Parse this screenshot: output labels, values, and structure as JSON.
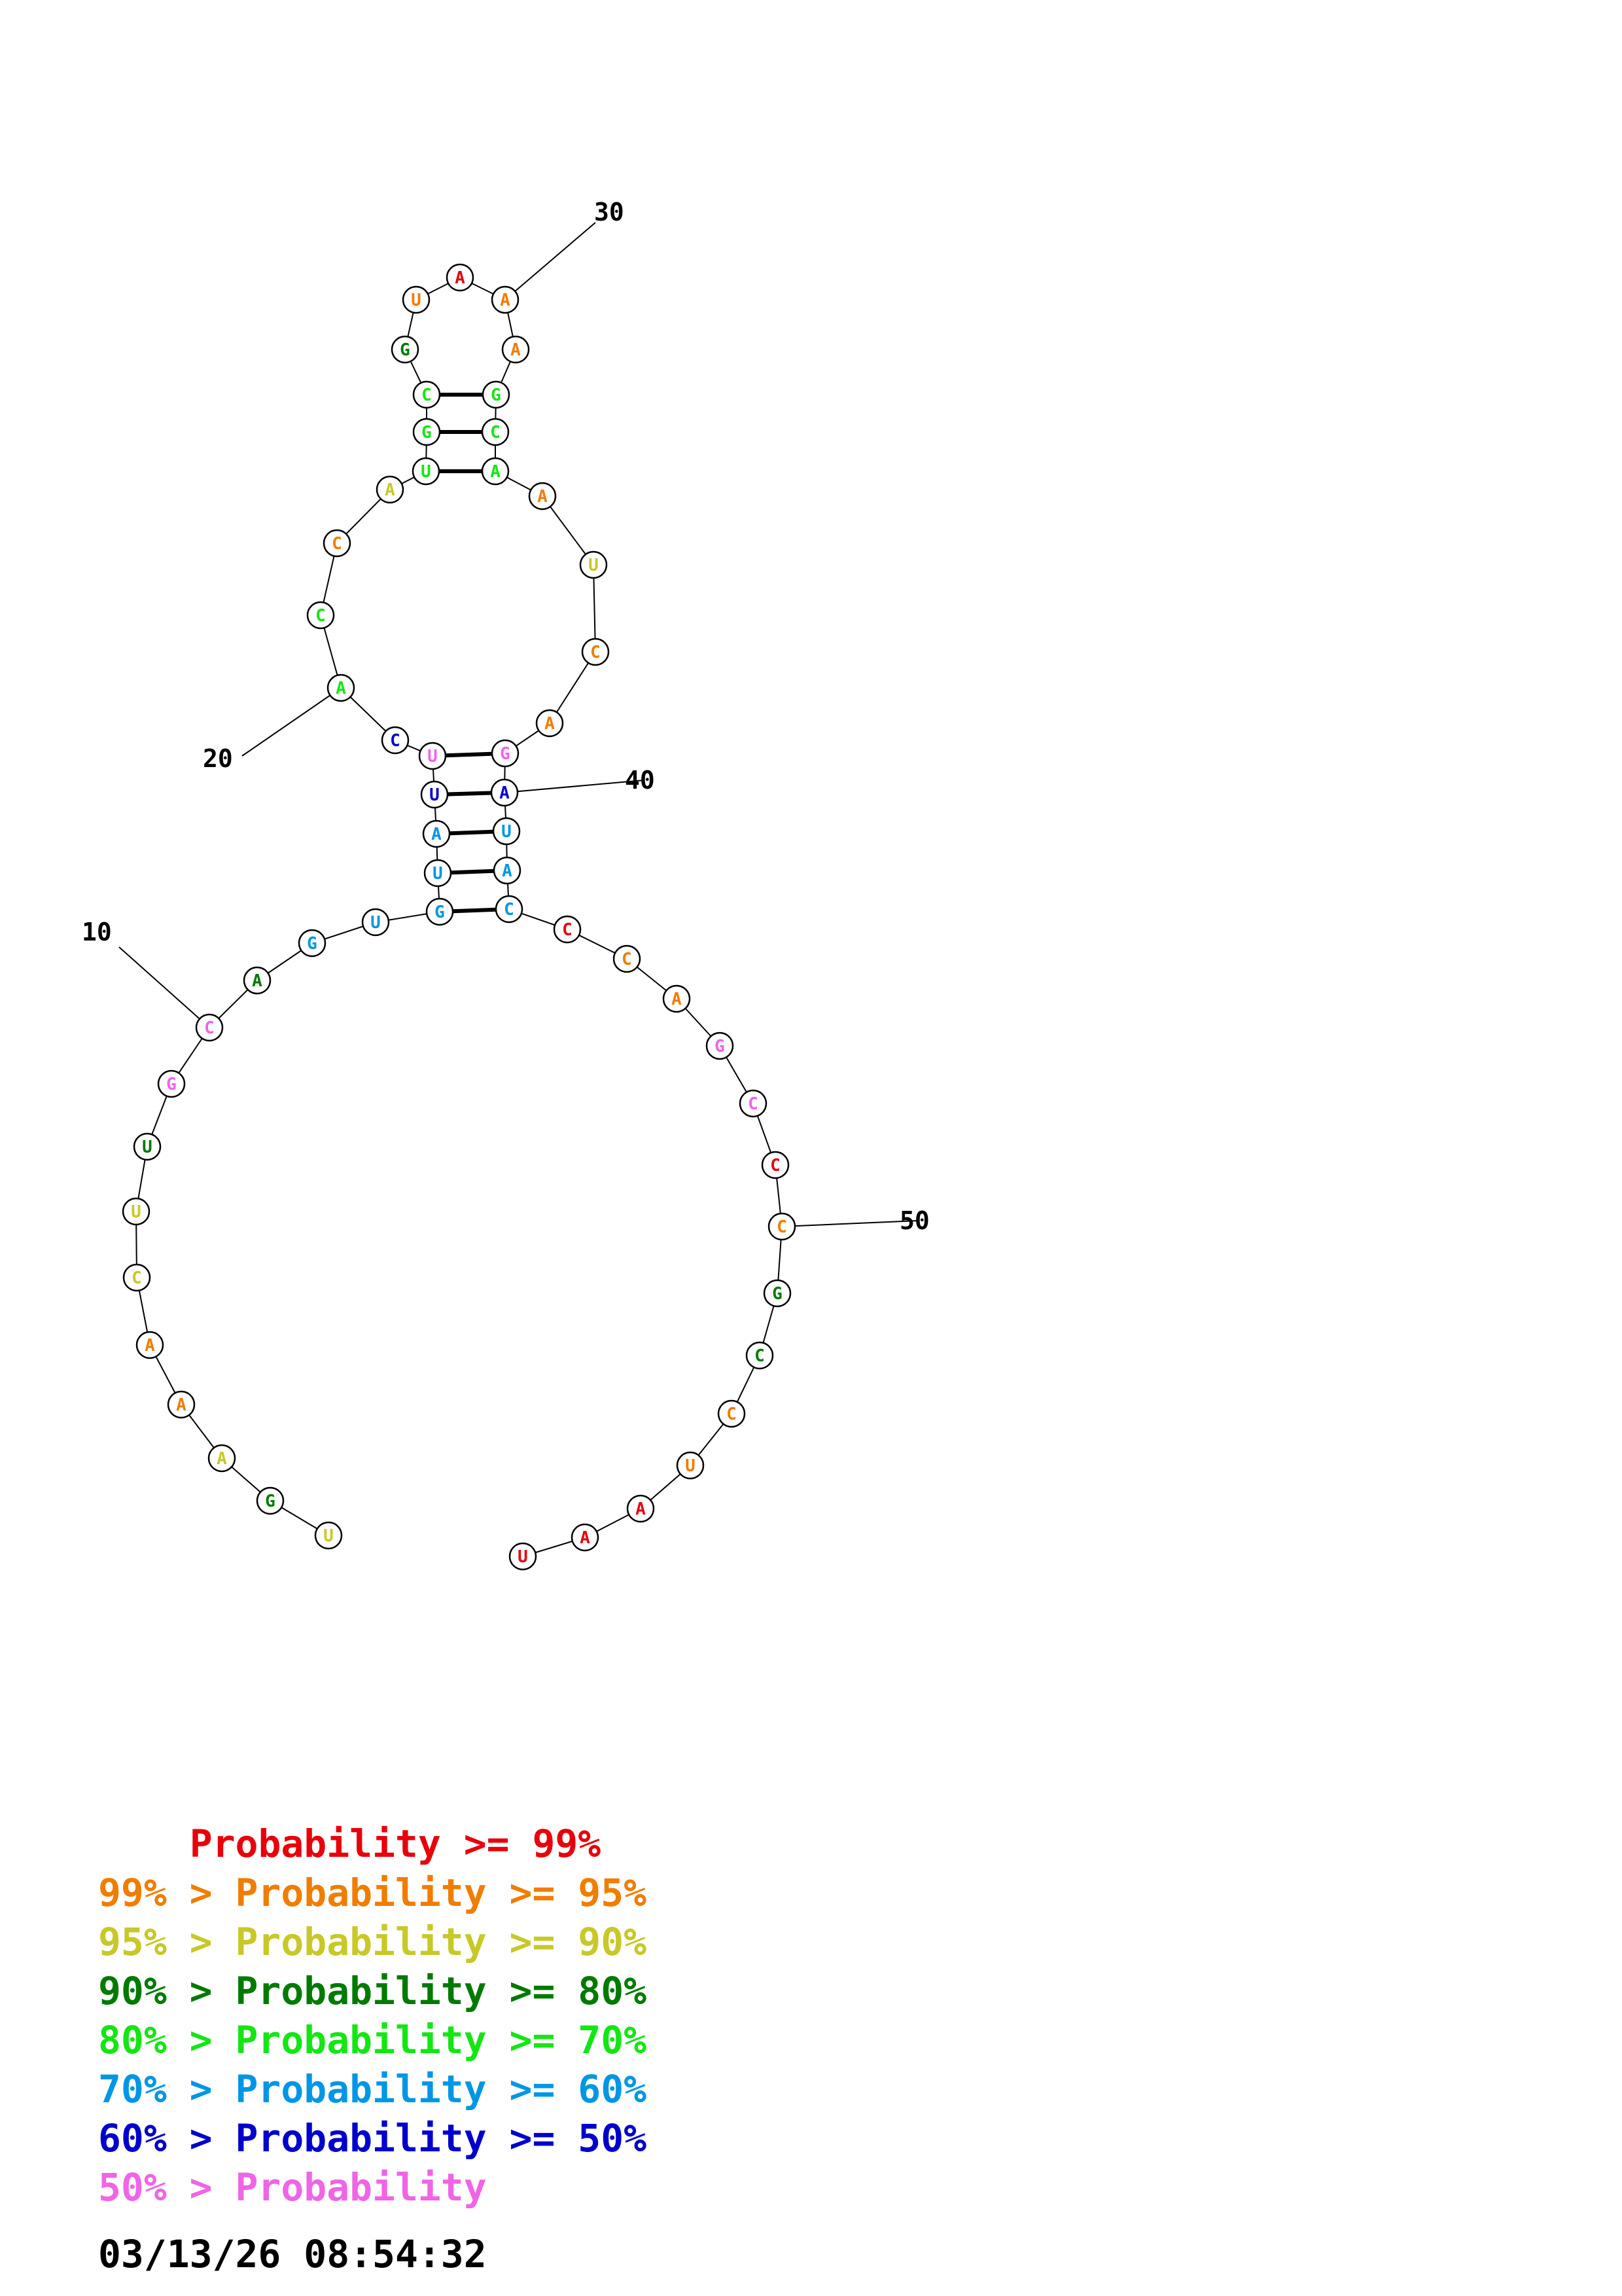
{
  "colors": {
    "p99": "#e8000b",
    "p95": "#f07d00",
    "p90": "#c8c828",
    "p80": "#007a00",
    "p70": "#14e614",
    "p60": "#0096e6",
    "p50": "#0000cc",
    "p0": "#f064e6"
  },
  "sequence": [
    {
      "n": 1,
      "b": "U",
      "c": "p90"
    },
    {
      "n": 2,
      "b": "G",
      "c": "p80"
    },
    {
      "n": 3,
      "b": "A",
      "c": "p90"
    },
    {
      "n": 4,
      "b": "A",
      "c": "p95"
    },
    {
      "n": 5,
      "b": "A",
      "c": "p95"
    },
    {
      "n": 6,
      "b": "C",
      "c": "p90"
    },
    {
      "n": 7,
      "b": "U",
      "c": "p90"
    },
    {
      "n": 8,
      "b": "U",
      "c": "p80"
    },
    {
      "n": 9,
      "b": "G",
      "c": "p0"
    },
    {
      "n": 10,
      "b": "C",
      "c": "p0"
    },
    {
      "n": 11,
      "b": "A",
      "c": "p80"
    },
    {
      "n": 12,
      "b": "G",
      "c": "p60"
    },
    {
      "n": 13,
      "b": "U",
      "c": "p60"
    },
    {
      "n": 14,
      "b": "G",
      "c": "p60"
    },
    {
      "n": 15,
      "b": "U",
      "c": "p60"
    },
    {
      "n": 16,
      "b": "A",
      "c": "p60"
    },
    {
      "n": 17,
      "b": "U",
      "c": "p50"
    },
    {
      "n": 18,
      "b": "U",
      "c": "p0"
    },
    {
      "n": 19,
      "b": "C",
      "c": "p50"
    },
    {
      "n": 20,
      "b": "A",
      "c": "p70"
    },
    {
      "n": 21,
      "b": "C",
      "c": "p70"
    },
    {
      "n": 22,
      "b": "C",
      "c": "p95"
    },
    {
      "n": 23,
      "b": "A",
      "c": "p90"
    },
    {
      "n": 24,
      "b": "U",
      "c": "p70"
    },
    {
      "n": 25,
      "b": "G",
      "c": "p70"
    },
    {
      "n": 26,
      "b": "C",
      "c": "p70"
    },
    {
      "n": 27,
      "b": "G",
      "c": "p80"
    },
    {
      "n": 28,
      "b": "U",
      "c": "p95"
    },
    {
      "n": 29,
      "b": "A",
      "c": "p99"
    },
    {
      "n": 30,
      "b": "A",
      "c": "p95"
    },
    {
      "n": 31,
      "b": "A",
      "c": "p95"
    },
    {
      "n": 32,
      "b": "G",
      "c": "p70"
    },
    {
      "n": 33,
      "b": "C",
      "c": "p70"
    },
    {
      "n": 34,
      "b": "A",
      "c": "p70"
    },
    {
      "n": 35,
      "b": "A",
      "c": "p95"
    },
    {
      "n": 36,
      "b": "U",
      "c": "p90"
    },
    {
      "n": 37,
      "b": "C",
      "c": "p95"
    },
    {
      "n": 38,
      "b": "A",
      "c": "p95"
    },
    {
      "n": 39,
      "b": "G",
      "c": "p0"
    },
    {
      "n": 40,
      "b": "A",
      "c": "p50"
    },
    {
      "n": 41,
      "b": "U",
      "c": "p60"
    },
    {
      "n": 42,
      "b": "A",
      "c": "p60"
    },
    {
      "n": 43,
      "b": "C",
      "c": "p60"
    },
    {
      "n": 44,
      "b": "C",
      "c": "p99"
    },
    {
      "n": 45,
      "b": "C",
      "c": "p95"
    },
    {
      "n": 46,
      "b": "A",
      "c": "p95"
    },
    {
      "n": 47,
      "b": "G",
      "c": "p0"
    },
    {
      "n": 48,
      "b": "C",
      "c": "p0"
    },
    {
      "n": 49,
      "b": "C",
      "c": "p99"
    },
    {
      "n": 50,
      "b": "C",
      "c": "p95"
    },
    {
      "n": 51,
      "b": "G",
      "c": "p80"
    },
    {
      "n": 52,
      "b": "C",
      "c": "p80"
    },
    {
      "n": 53,
      "b": "C",
      "c": "p95"
    },
    {
      "n": 54,
      "b": "U",
      "c": "p95"
    },
    {
      "n": 55,
      "b": "A",
      "c": "p99"
    },
    {
      "n": 56,
      "b": "A",
      "c": "p99"
    },
    {
      "n": 57,
      "b": "U",
      "c": "p99"
    }
  ],
  "pairs": [
    [
      14,
      43
    ],
    [
      15,
      42
    ],
    [
      16,
      41
    ],
    [
      17,
      40
    ],
    [
      18,
      39
    ],
    [
      24,
      34
    ],
    [
      25,
      33
    ],
    [
      26,
      32
    ]
  ],
  "position_labels": [
    {
      "n": 10,
      "label": "10"
    },
    {
      "n": 20,
      "label": "20"
    },
    {
      "n": 30,
      "label": "30"
    },
    {
      "n": 40,
      "label": "40"
    },
    {
      "n": 50,
      "label": "50"
    }
  ],
  "legend": [
    {
      "prefix": "    ",
      "text": "Probability >= 99%",
      "c": "p99"
    },
    {
      "prefix": "99% > ",
      "text": "Probability >= 95%",
      "c": "p95"
    },
    {
      "prefix": "95% > ",
      "text": "Probability >= 90%",
      "c": "p90"
    },
    {
      "prefix": "90% > ",
      "text": "Probability >= 80%",
      "c": "p80"
    },
    {
      "prefix": "80% > ",
      "text": "Probability >= 70%",
      "c": "p70"
    },
    {
      "prefix": "70% > ",
      "text": "Probability >= 60%",
      "c": "p60"
    },
    {
      "prefix": "60% > ",
      "text": "Probability >= 50%",
      "c": "p50"
    },
    {
      "prefix": "50% > ",
      "text": "Probability",
      "c": "p0"
    }
  ],
  "timestamp": "03/13/26 08:54:32"
}
